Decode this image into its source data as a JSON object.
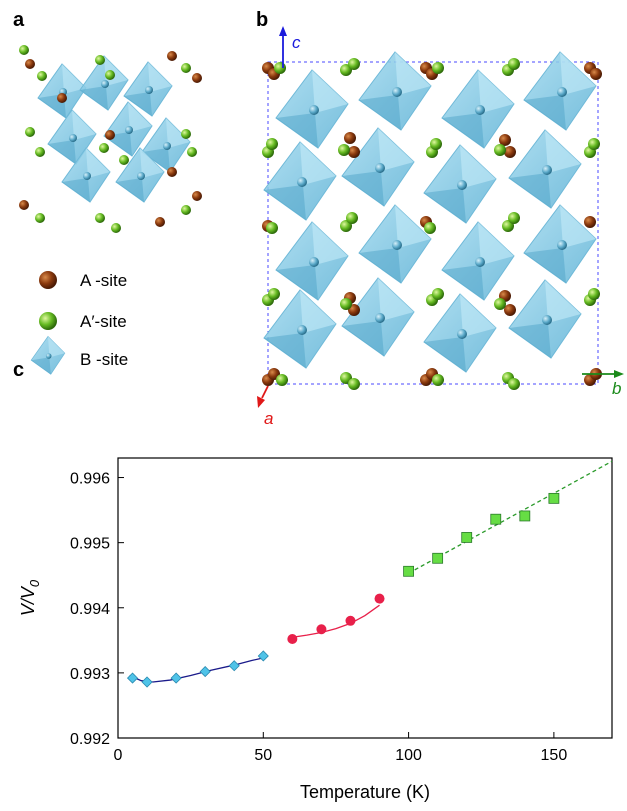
{
  "panels": {
    "a": "a",
    "b": "b",
    "c": "c"
  },
  "legend": {
    "a_site": "A -site",
    "a_prime_site": "A′-site",
    "b_site": "B -site"
  },
  "axes_labels": {
    "c": "c",
    "a": "a",
    "b": "b"
  },
  "colors": {
    "a_site": "#8B3A0E",
    "a_prime_site": "#66BB22",
    "b_site": "#7EC8E3",
    "axis_c": "#1a1adc",
    "axis_a": "#e01818",
    "axis_b": "#1a8a1a"
  },
  "chart_data": {
    "type": "scatter",
    "xlabel": "Temperature (K)",
    "ylabel_main": "V/V",
    "ylabel_sub": "0",
    "xlim": [
      0,
      170
    ],
    "ylim": [
      0.992,
      0.9963
    ],
    "xticks": [
      0,
      50,
      100,
      150
    ],
    "xtick_labels": [
      "0",
      "50",
      "100",
      "150"
    ],
    "yticks": [
      0.992,
      0.993,
      0.994,
      0.995,
      0.996
    ],
    "ytick_labels": [
      "0.992",
      "0.993",
      "0.994",
      "0.995",
      "0.996"
    ],
    "grid": false,
    "series": [
      {
        "marker": "diamond",
        "color": "#4fc3e8",
        "line_color": "#1a1a8a",
        "line_style": "solid",
        "x": [
          5,
          10,
          20,
          30,
          40,
          50
        ],
        "y": [
          0.99292,
          0.99286,
          0.99292,
          0.99302,
          0.99311,
          0.99326
        ],
        "fit": [
          [
            4,
            0.99296
          ],
          [
            8,
            0.99288
          ],
          [
            12,
            0.99286
          ],
          [
            18,
            0.99289
          ],
          [
            25,
            0.99296
          ],
          [
            32,
            0.99304
          ],
          [
            40,
            0.99312
          ],
          [
            46,
            0.99319
          ],
          [
            51,
            0.99324
          ]
        ]
      },
      {
        "marker": "circle",
        "color": "#e8204a",
        "line_color": "#e8204a",
        "line_style": "solid",
        "x": [
          60,
          70,
          80,
          90
        ],
        "y": [
          0.99352,
          0.99367,
          0.9938,
          0.99414
        ],
        "fit": [
          [
            59,
            0.99354
          ],
          [
            65,
            0.99358
          ],
          [
            70,
            0.99362
          ],
          [
            75,
            0.99368
          ],
          [
            80,
            0.99376
          ],
          [
            85,
            0.99388
          ],
          [
            90,
            0.99404
          ]
        ]
      },
      {
        "marker": "square",
        "color": "#66dd44",
        "line_color": "#2a9a2a",
        "line_style": "dashed",
        "x": [
          100,
          110,
          120,
          130,
          140,
          150
        ],
        "y": [
          0.99456,
          0.99476,
          0.99508,
          0.99536,
          0.99541,
          0.99568
        ],
        "fit": [
          [
            100,
            0.99453
          ],
          [
            170,
            0.99625
          ]
        ]
      }
    ]
  }
}
